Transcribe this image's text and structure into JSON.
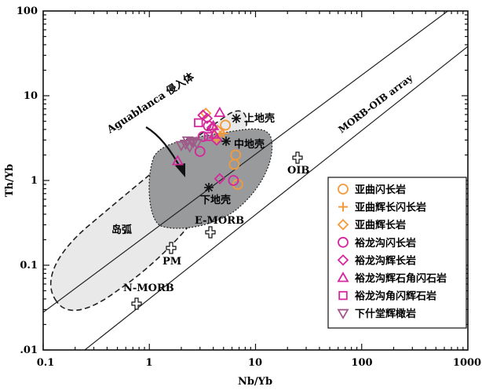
{
  "chart_data": {
    "type": "scatter",
    "xlabel": "Nb/Yb",
    "ylabel": "Th/Yb",
    "x_scale": "log",
    "y_scale": "log",
    "xlim": [
      0.1,
      1000
    ],
    "ylim": [
      0.01,
      100
    ],
    "x_ticks": [
      "0.1",
      "1",
      "10",
      "100",
      "1000"
    ],
    "y_ticks": [
      ".01",
      "0.1",
      "1",
      "10",
      "100"
    ],
    "legend_position": "bottom-right",
    "annotations": {
      "aguablanca": "Aguablanca 侵入体",
      "array": "MORB-OIB array",
      "arc": "岛弧"
    },
    "reference_points": [
      {
        "label": "上地壳",
        "x": 5.6,
        "y": 5.4
      },
      {
        "label": "中地壳",
        "x": 4.6,
        "y": 2.9
      },
      {
        "label": "下地壳",
        "x": 3.4,
        "y": 0.85
      },
      {
        "label": "OIB",
        "x": 24,
        "y": 1.9
      },
      {
        "label": "E-MORB",
        "x": 3.6,
        "y": 0.27
      },
      {
        "label": "PM",
        "x": 1.55,
        "y": 0.18
      },
      {
        "label": "N-MORB",
        "x": 0.75,
        "y": 0.038
      }
    ],
    "series": [
      {
        "name": "亚曲闪长岩",
        "marker": "circle",
        "color": "#f39a3c",
        "points": [
          [
            5.2,
            4.5
          ],
          [
            6.5,
            2.0
          ],
          [
            6.3,
            1.55
          ],
          [
            6.8,
            0.9
          ]
        ]
      },
      {
        "name": "亚曲辉长闪长岩",
        "marker": "plus",
        "color": "#f39a3c",
        "points": [
          [
            4.6,
            3.4
          ],
          [
            4.3,
            3.0
          ],
          [
            5.0,
            3.6
          ]
        ]
      },
      {
        "name": "亚曲辉长岩",
        "marker": "diamond",
        "color": "#f39a3c",
        "points": [
          [
            3.4,
            6.2
          ],
          [
            4.4,
            3.9
          ]
        ]
      },
      {
        "name": "裕龙沟闪长岩",
        "marker": "circle",
        "color": "#d6269c",
        "points": [
          [
            3.6,
            4.4
          ],
          [
            3.2,
            3.3
          ],
          [
            3.0,
            2.2
          ],
          [
            6.2,
            1.0
          ]
        ]
      },
      {
        "name": "裕龙沟辉长岩",
        "marker": "diamond",
        "color": "#d6269c",
        "points": [
          [
            3.2,
            5.9
          ],
          [
            3.5,
            5.4
          ],
          [
            3.9,
            4.2
          ],
          [
            4.3,
            3.0
          ],
          [
            4.6,
            1.05
          ]
        ]
      },
      {
        "name": "裕龙沟辉石角闪石岩",
        "marker": "triangle-up",
        "color": "#d6269c",
        "points": [
          [
            4.6,
            6.3
          ],
          [
            4.0,
            4.4
          ],
          [
            1.85,
            1.7
          ],
          [
            4.1,
            3.5
          ]
        ]
      },
      {
        "name": "裕龙沟角闪辉石岩",
        "marker": "square",
        "color": "#d6269c",
        "points": [
          [
            2.9,
            4.8
          ],
          [
            3.6,
            3.3
          ]
        ]
      },
      {
        "name": "下什堂辉橄岩",
        "marker": "triangle-down",
        "color": "#a05a8a",
        "points": [
          [
            2.2,
            2.7
          ],
          [
            2.5,
            2.9
          ],
          [
            2.8,
            2.75
          ],
          [
            2.4,
            2.5
          ],
          [
            2.0,
            2.6
          ],
          [
            2.6,
            2.85
          ],
          [
            2.3,
            2.95
          ]
        ]
      }
    ]
  }
}
